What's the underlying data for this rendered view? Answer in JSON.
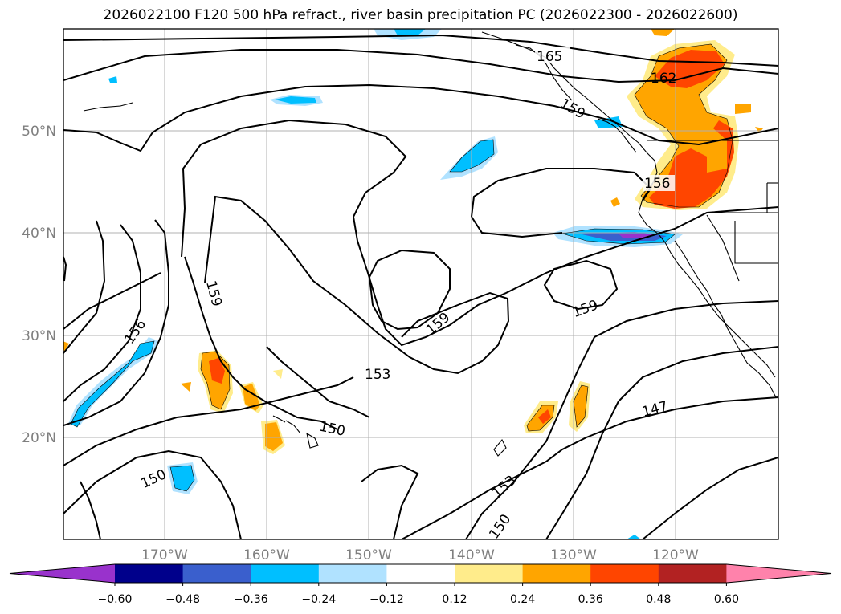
{
  "title": "2026022100 F120 500 hPa refract., river basin precipitation PC (2026022300 - 2026022600)",
  "colors": {
    "frame": "#000000",
    "grid": "#b0b0b0",
    "coast": "#000000",
    "contour": "#000000",
    "axis_text": "#7f7f7f"
  },
  "axes": {
    "lon_labels": [
      "170°W",
      "160°W",
      "150°W",
      "140°W",
      "130°W",
      "120°W"
    ],
    "lat_labels": [
      "50°N",
      "40°N",
      "30°N",
      "20°N"
    ]
  },
  "contour_labels": [
    "165",
    "162",
    "159",
    "156",
    "159",
    "156",
    "159",
    "159",
    "153",
    "150",
    "150",
    "153",
    "150",
    "147"
  ],
  "colorbar": {
    "tick_labels": [
      "−0.60",
      "−0.48",
      "−0.36",
      "−0.24",
      "−0.12",
      "0.12",
      "0.24",
      "0.36",
      "0.48",
      "0.60"
    ],
    "colors": [
      "#9932cc",
      "#00008b",
      "#3a5fcd",
      "#00bfff",
      "#b0e2ff",
      "#ffffff",
      "#ffec8b",
      "#ffa500",
      "#ff4500",
      "#b22222",
      "#ff82ab"
    ]
  },
  "fields": {
    "neg_light": "#b0e2ff",
    "neg_mid": "#00bfff",
    "neg_dark": "#3a5fcd",
    "neg_purple": "#9932cc",
    "pos_light": "#ffec8b",
    "pos_mid": "#ffa500",
    "pos_dark": "#ff4500"
  }
}
